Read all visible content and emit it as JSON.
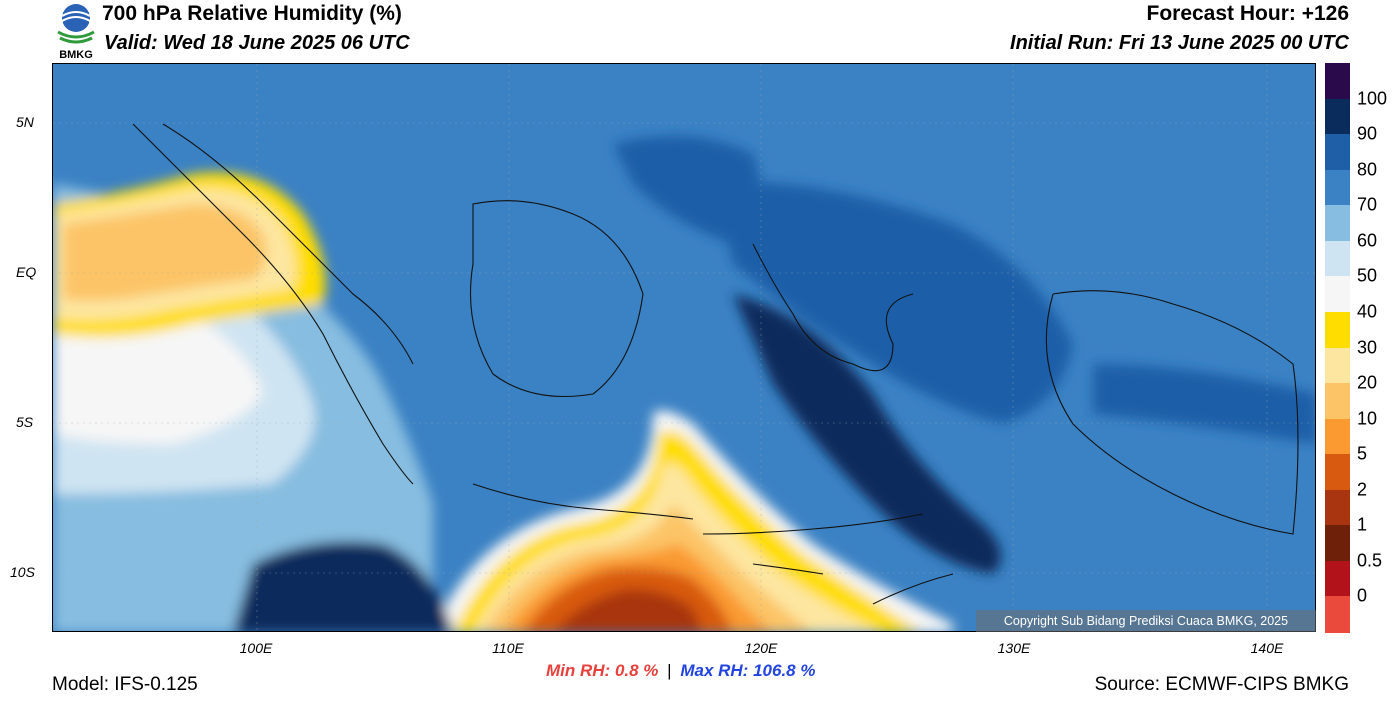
{
  "header": {
    "title": "700 hPa Relative Humidity (%)",
    "valid": "Valid: Wed 18 June 2025 06 UTC",
    "forecast_hour": "Forecast Hour: +126",
    "initial_run": "Initial Run: Fri 13 June 2025 00 UTC",
    "logo_text": "BMKG"
  },
  "axes": {
    "lat_labels": [
      "5N",
      "EQ",
      "5S",
      "10S"
    ],
    "lon_labels": [
      "100E",
      "110E",
      "120E",
      "130E",
      "140E"
    ]
  },
  "colorbar": {
    "labels": [
      "100",
      "90",
      "80",
      "70",
      "60",
      "50",
      "40",
      "30",
      "20",
      "10",
      "5",
      "2",
      "1",
      "0.5",
      "0"
    ],
    "colors": [
      "#2a0a4a",
      "#0a2c5c",
      "#1f5fa8",
      "#3b82c4",
      "#87bde0",
      "#cfe4f2",
      "#f6f6f6",
      "#ffdd00",
      "#fde6a0",
      "#fcc466",
      "#fa9a30",
      "#d85a10",
      "#a83410",
      "#6e2008",
      "#b2121a",
      "#ea4a3c"
    ]
  },
  "copyright": "Copyright Sub Bidang Prediksi Cuaca BMKG, 2025",
  "stats": {
    "min_label": "Min RH:",
    "min_value": "0.8 %",
    "separator": "|",
    "max_label": "Max RH:",
    "max_value": "106.8 %"
  },
  "footer": {
    "model": "Model: IFS-0.125",
    "source": "Source: ECMWF-CIPS BMKG"
  }
}
